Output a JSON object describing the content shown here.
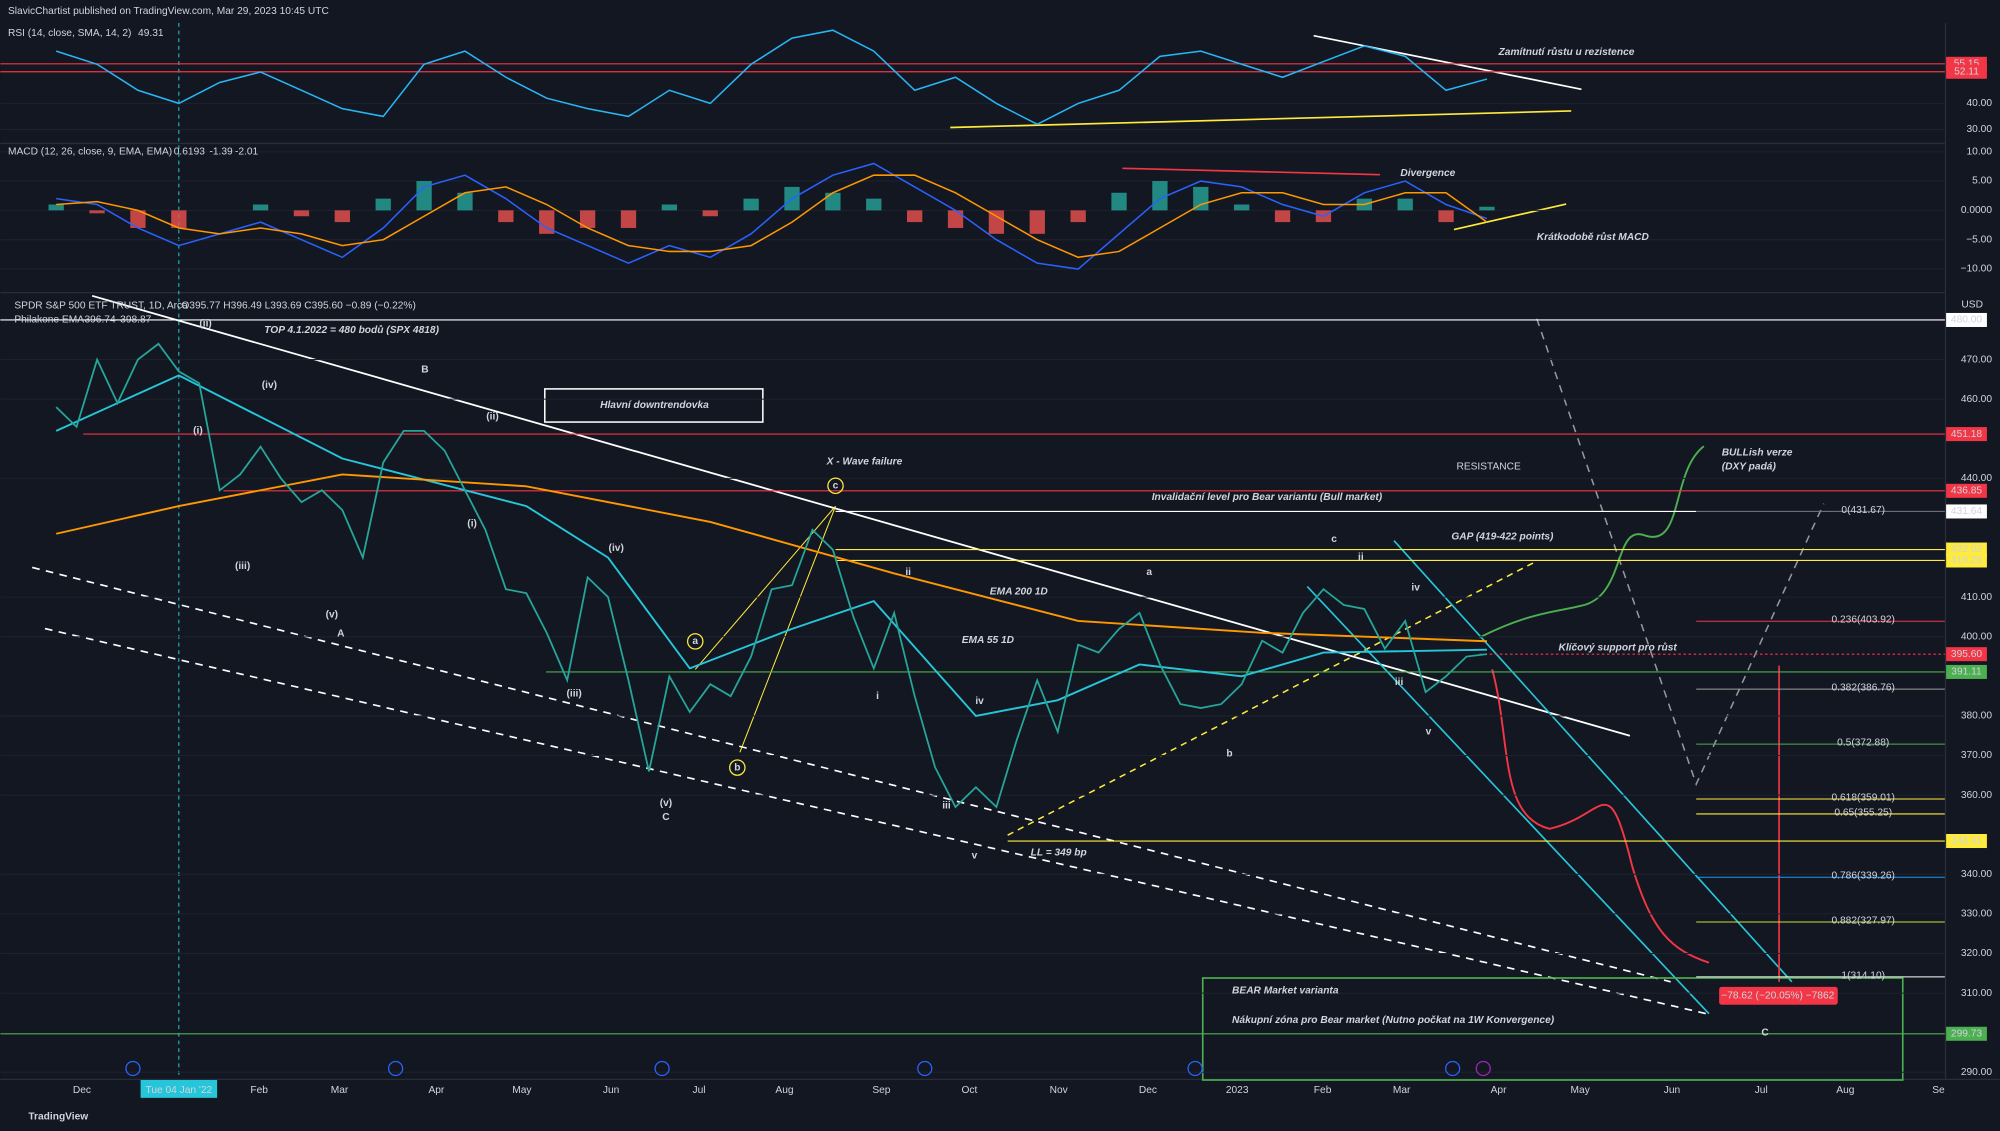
{
  "header": {
    "publisher": "SlavicChartist published on TradingView.com, Mar 29, 2023 10:45 UTC",
    "footer": "TradingView",
    "currency": "USD",
    "date_marker": "Tue 04 Jan '22"
  },
  "x_axis_labels": [
    "Dec",
    "Feb",
    "Mar",
    "Apr",
    "May",
    "Jun",
    "Jul",
    "Aug",
    "Sep",
    "Oct",
    "Nov",
    "Dec",
    "2023",
    "Feb",
    "Mar",
    "Apr",
    "May",
    "Jun",
    "Jul",
    "Aug",
    "Se"
  ],
  "chart_data": [
    {
      "type": "line",
      "title": "RSI (14, close, SMA, 14, 2)",
      "color": "#29b6f6",
      "ylim": [
        24.9,
        70.8
      ],
      "yticks": [
        {
          "value": 40,
          "label": "40.00"
        },
        {
          "value": 30,
          "label": "30.00"
        }
      ],
      "levels": [
        {
          "value": 55.15,
          "label": "55.15"
        },
        {
          "value": 52.11,
          "label": "52.11"
        }
      ],
      "values": [
        60,
        55,
        45,
        40,
        48,
        52,
        45,
        38,
        35,
        55,
        60,
        50,
        42,
        38,
        35,
        45,
        40,
        55,
        65,
        68,
        60,
        45,
        50,
        40,
        32,
        40,
        45,
        58,
        60,
        55,
        50,
        56,
        62,
        58,
        45,
        49.31
      ]
    },
    {
      "type": "macd",
      "title": "MACD (12, 26, close, 9, EMA, EMA)",
      "ylim": [
        -13.7,
        11.3
      ],
      "yticks": [
        {
          "value": 10,
          "label": "10.00"
        },
        {
          "value": 5,
          "label": "5.00"
        },
        {
          "value": 0,
          "label": "0.0000"
        },
        {
          "value": -5,
          "label": "−5.00"
        },
        {
          "value": -10,
          "label": "−10.00"
        }
      ],
      "histogram": [
        1,
        -0.5,
        -3,
        -3,
        0,
        1,
        -1,
        -2,
        2,
        5,
        3,
        -2,
        -4,
        -3,
        -3,
        1,
        -1,
        2,
        4,
        3,
        2,
        -2,
        -3,
        -4,
        -4,
        -2,
        3,
        5,
        4,
        1,
        -2,
        -2,
        2,
        2,
        -2,
        0.6193
      ],
      "macd": [
        2,
        1,
        -3,
        -6,
        -4,
        -2,
        -5,
        -8,
        -3,
        4,
        6,
        2,
        -3,
        -6,
        -9,
        -6,
        -8,
        -4,
        2,
        6,
        8,
        4,
        0,
        -5,
        -9,
        -10,
        -4,
        2,
        5,
        4,
        1,
        -1,
        3,
        5,
        1,
        -1.39
      ],
      "signal": [
        1,
        1.5,
        0,
        -3,
        -4,
        -3,
        -4,
        -6,
        -5,
        -1,
        3,
        4,
        1,
        -3,
        -6,
        -7,
        -7,
        -6,
        -2,
        3,
        6,
        6,
        3,
        -1,
        -5,
        -8,
        -7,
        -3,
        1,
        3,
        3,
        1,
        1,
        3,
        3,
        -2.01
      ],
      "macd_color": "#2962ff",
      "signal_color": "#ff9800"
    },
    {
      "type": "line",
      "title": "SPDR S&P 500 ETF TRUST, 1D, Arca",
      "ohlc": "O395.77 H396.49 L393.69 C395.60 −0.89 (−0.22%)",
      "color": "#26a69a",
      "ylim": [
        288.7,
        486.1
      ],
      "yticks": [
        {
          "value": 470,
          "label": "470.00"
        },
        {
          "value": 460,
          "label": "460.00"
        },
        {
          "value": 440,
          "label": "440.00"
        },
        {
          "value": 410,
          "label": "410.00"
        },
        {
          "value": 400,
          "label": "400.00"
        },
        {
          "value": 380,
          "label": "380.00"
        },
        {
          "value": 370,
          "label": "370.00"
        },
        {
          "value": 360,
          "label": "360.00"
        },
        {
          "value": 340,
          "label": "340.00"
        },
        {
          "value": 330,
          "label": "330.00"
        },
        {
          "value": 320,
          "label": "320.00"
        },
        {
          "value": 310,
          "label": "310.00"
        },
        {
          "value": 290,
          "label": "290.00"
        }
      ],
      "values": [
        458,
        453,
        470,
        459,
        470,
        474,
        467,
        464,
        437,
        441,
        448,
        440,
        434,
        437,
        432,
        420,
        444,
        452,
        452,
        447,
        437,
        427,
        412,
        411,
        401,
        389,
        415,
        410,
        389,
        366,
        390,
        381,
        388,
        385,
        395,
        412,
        413,
        427,
        422,
        405,
        392,
        406,
        385,
        367,
        357,
        362,
        357,
        374,
        389,
        376,
        398,
        396,
        402,
        406,
        393,
        383,
        382,
        383,
        388,
        399,
        396,
        406,
        412,
        408,
        407,
        397,
        404,
        386,
        390,
        395,
        395.6
      ],
      "ema_title": "Philakone EMA",
      "emas": [
        {
          "name": "EMA 55 1D",
          "color": "#26c6da",
          "x_index": [
            0,
            6,
            14,
            23,
            27,
            31,
            36,
            40,
            45,
            49,
            53,
            58,
            62,
            70
          ],
          "values": [
            452,
            466,
            445,
            433,
            420,
            392,
            402,
            409,
            380,
            384,
            393,
            390,
            396,
            396.74
          ]
        },
        {
          "name": "EMA 200 1D",
          "color": "#ff9800",
          "x_index": [
            0,
            6,
            14,
            23,
            32,
            41,
            50,
            59,
            70
          ],
          "values": [
            426,
            433,
            441,
            438,
            429,
            416,
            404,
            401,
            398.87
          ]
        }
      ],
      "levels": [
        {
          "value": 480,
          "label": "480.00",
          "color": "#ffffff"
        },
        {
          "value": 451.18,
          "label": "451.18",
          "color": "#f23645"
        },
        {
          "value": 436.85,
          "label": "436.85",
          "color": "#f23645"
        },
        {
          "value": 431.64,
          "label": "431.64",
          "color": "#ffffff"
        },
        {
          "value": 422.02,
          "label": "422.02",
          "color": "#ffeb3b"
        },
        {
          "value": 419.26,
          "label": "419.26",
          "color": "#ffeb3b"
        },
        {
          "value": 395.6,
          "label": "395.60",
          "color": "#f23645"
        },
        {
          "value": 391.11,
          "label": "391.11",
          "color": "#4caf50"
        },
        {
          "value": 348.41,
          "label": "348.41",
          "color": "#ffeb3b"
        },
        {
          "value": 299.73,
          "label": "299.73",
          "color": "#4caf50"
        }
      ],
      "fib": [
        {
          "value": 431.67,
          "label": "0(431.67)",
          "color": "#787b86"
        },
        {
          "value": 403.92,
          "label": "0.236(403.92)",
          "color": "#f23645"
        },
        {
          "value": 386.76,
          "label": "0.382(386.76)",
          "color": "#9e9e9e"
        },
        {
          "value": 372.88,
          "label": "0.5(372.88)",
          "color": "#4caf50"
        },
        {
          "value": 359.01,
          "label": "0.618(359.01)",
          "color": "#ffeb3b"
        },
        {
          "value": 355.25,
          "label": "0.65(355.25)",
          "color": "#ffeb3b"
        },
        {
          "value": 339.26,
          "label": "0.786(339.26)",
          "color": "#2196f3"
        },
        {
          "value": 327.97,
          "label": "0.882(327.97)",
          "color": "#cddc39"
        },
        {
          "value": 314.1,
          "label": "1(314.10)",
          "color": "#ffffff"
        }
      ],
      "measure": "−78.62 (−20.05%) −7862"
    }
  ],
  "wave_labels": [
    "(ii)",
    "(iv)",
    "(i)",
    "(iii)",
    "(v)",
    "A",
    "B",
    "(ii)",
    "(i)",
    "(iv)",
    "(iii)",
    "(v)",
    "C",
    "a",
    "b",
    "c",
    "ii",
    "i",
    "iv",
    "iii",
    "v",
    "a",
    "b",
    "c",
    "ii",
    "iv",
    "iii",
    "v",
    "C"
  ],
  "annotations": [
    "TOP 4.1.2022 = 480 bodů (SPX 4818)",
    "Hlavní downtrendovka",
    "X - Wave failure",
    "EMA 200 1D",
    "EMA 55 1D",
    "LL = 349 bp",
    "RESISTANCE",
    "Invalidační level pro Bear variantu (Bull market)",
    "GAP (419-422 points)",
    "Klíčový support pro růst",
    "BULLish verze",
    "(DXY padá)",
    "BEAR Market varianta",
    "Nákupní zóna pro Bear market (Nutno počkat na 1W Konvergence)",
    "Zamítnutí růstu u rezistence",
    "Divergence",
    "Krátkodobě růst MACD"
  ]
}
